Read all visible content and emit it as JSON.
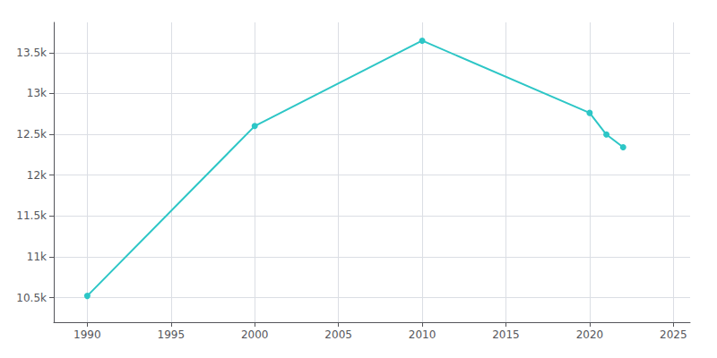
{
  "chart_data": {
    "type": "line",
    "x": [
      1990,
      2000,
      2010,
      2020,
      2021,
      2022
    ],
    "values": [
      10522,
      12601,
      13646,
      12762,
      12497,
      12341
    ],
    "color": "#2DC6C6",
    "marker": "circle",
    "xlim": [
      1988,
      2026
    ],
    "ylim": [
      10200,
      13870
    ],
    "xticks": [
      1990,
      1995,
      2000,
      2005,
      2010,
      2015,
      2020,
      2025
    ],
    "yticks": [
      {
        "value": 10500,
        "label": "10.5k"
      },
      {
        "value": 11000,
        "label": "11k"
      },
      {
        "value": 11500,
        "label": "11.5k"
      },
      {
        "value": 12000,
        "label": "12k"
      },
      {
        "value": 12500,
        "label": "12.5k"
      },
      {
        "value": 13000,
        "label": "13k"
      },
      {
        "value": 13500,
        "label": "13.5k"
      }
    ],
    "grid": true
  }
}
